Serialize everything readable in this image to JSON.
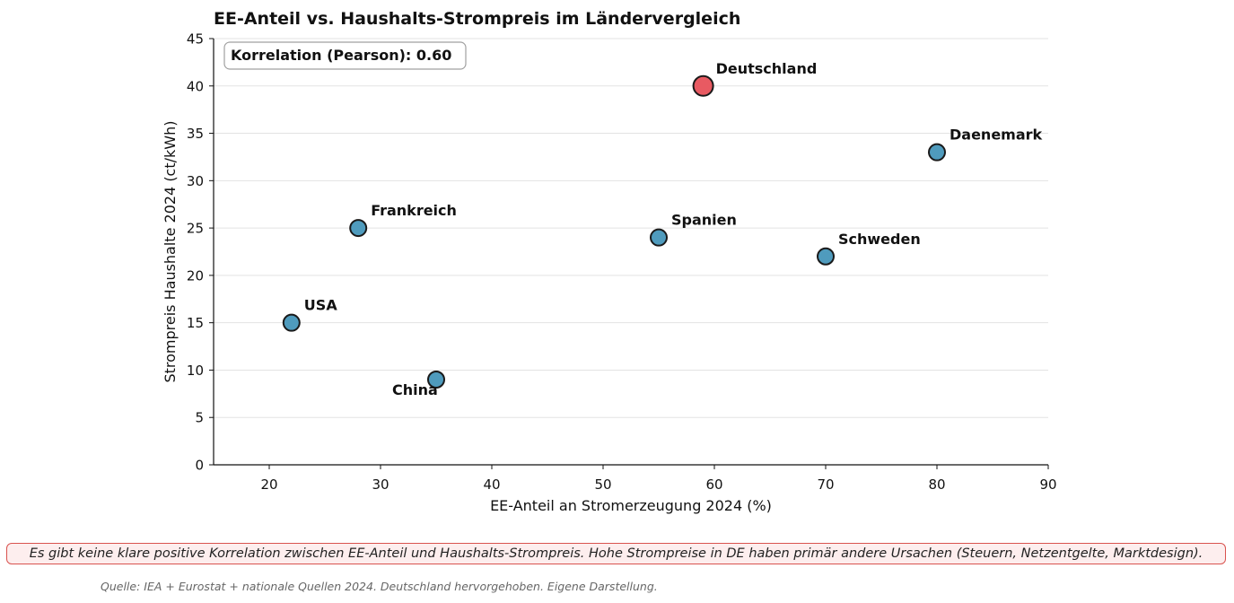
{
  "chart_data": {
    "type": "scatter",
    "title": "EE-Anteil vs. Haushalts-Strompreis im Ländervergleich",
    "xlabel": "EE-Anteil an Stromerzeugung 2024 (%)",
    "ylabel": "Strompreis Haushalte 2024 (ct/kWh)",
    "xlim": [
      15,
      90
    ],
    "ylim": [
      0,
      45
    ],
    "xticks": [
      20,
      30,
      40,
      50,
      60,
      70,
      80,
      90
    ],
    "yticks": [
      0,
      5,
      10,
      15,
      20,
      25,
      30,
      35,
      40,
      45
    ],
    "grid": "horizontal",
    "points": [
      {
        "label": "USA",
        "x": 22,
        "y": 15,
        "highlight": false
      },
      {
        "label": "Frankreich",
        "x": 28,
        "y": 25,
        "highlight": false
      },
      {
        "label": "China",
        "x": 35,
        "y": 9,
        "highlight": false
      },
      {
        "label": "Spanien",
        "x": 55,
        "y": 24,
        "highlight": false
      },
      {
        "label": "Deutschland",
        "x": 59,
        "y": 40,
        "highlight": true
      },
      {
        "label": "Schweden",
        "x": 70,
        "y": 22,
        "highlight": false
      },
      {
        "label": "Daenemark",
        "x": 80,
        "y": 33,
        "highlight": false
      }
    ],
    "annotation": "Korrelation (Pearson): 0.60",
    "colors": {
      "default": "#4f9bbd",
      "highlight": "#e85a62",
      "edge": "#1a1a1a"
    }
  },
  "note": "Es gibt keine klare positive Korrelation zwischen EE-Anteil und Haushalts-Strompreis. Hohe Strompreise in DE haben primär andere Ursachen (Steuern, Netzentgelte, Marktdesign).",
  "source": "Quelle: IEA + Eurostat + nationale Quellen 2024. Deutschland hervorgehoben. Eigene Darstellung."
}
